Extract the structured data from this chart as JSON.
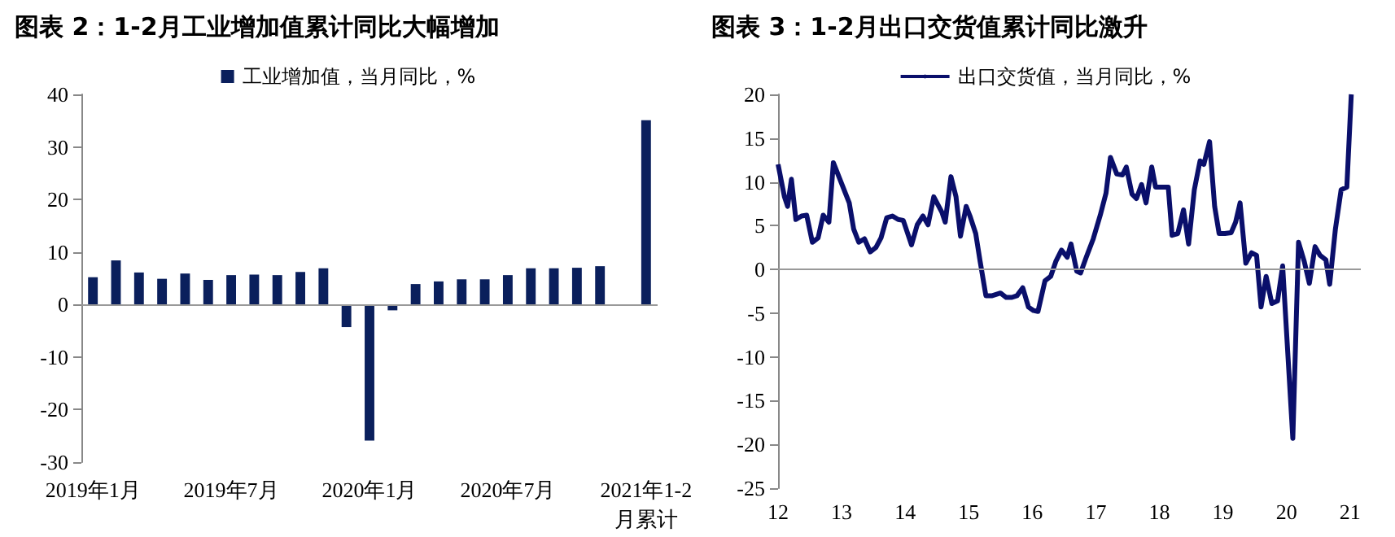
{
  "chart_data": [
    {
      "type": "bar",
      "title": "图表 2：1-2月工业增加值累计同比大幅增加",
      "categories": [
        "2019年1月",
        null,
        null,
        null,
        null,
        null,
        "2019年7月",
        null,
        null,
        null,
        null,
        null,
        "2020年1月",
        null,
        null,
        null,
        null,
        null,
        "2020年7月",
        null,
        null,
        null,
        null,
        null,
        "2021年1-2\n月累计"
      ],
      "series": [
        {
          "name": "工业增加值，当月同比，%",
          "color": "#0a1f5c",
          "values": [
            5.2,
            8.4,
            6.1,
            4.9,
            5.9,
            4.7,
            5.6,
            5.7,
            5.6,
            6.2,
            6.9,
            -4.3,
            -25.9,
            -1.1,
            3.9,
            4.4,
            4.8,
            4.8,
            5.6,
            6.9,
            6.9,
            7.0,
            7.3,
            null,
            35.1
          ]
        }
      ],
      "ylim": [
        -30,
        40
      ],
      "yticks": [
        -30,
        -20,
        -10,
        0,
        10,
        20,
        30,
        40
      ],
      "grid": false,
      "legend": "top",
      "ref_lines": [
        {
          "axis": "y",
          "value": 0,
          "color": "#999999"
        }
      ]
    },
    {
      "type": "line",
      "title": "图表 3：1-2月出口交货值累计同比激升",
      "x": [
        12.0,
        12.1,
        12.15,
        12.21,
        12.28,
        12.37,
        12.45,
        12.54,
        12.63,
        12.71,
        12.8,
        12.87,
        13.0,
        13.12,
        13.19,
        13.27,
        13.36,
        13.45,
        13.54,
        13.62,
        13.71,
        13.8,
        13.89,
        13.97,
        14.1,
        14.19,
        14.28,
        14.36,
        14.45,
        14.58,
        14.63,
        14.72,
        14.8,
        14.87,
        14.96,
        15.02,
        15.11,
        15.18,
        15.27,
        15.37,
        15.5,
        15.59,
        15.68,
        15.76,
        15.85,
        15.94,
        16.02,
        16.09,
        16.2,
        16.29,
        16.37,
        16.46,
        16.55,
        16.61,
        16.7,
        16.76,
        16.85,
        16.96,
        17.07,
        17.16,
        17.23,
        17.33,
        17.42,
        17.48,
        17.57,
        17.64,
        17.72,
        17.79,
        17.88,
        17.94,
        18.07,
        18.14,
        18.2,
        18.29,
        18.38,
        18.46,
        18.55,
        18.64,
        18.7,
        18.79,
        18.87,
        18.94,
        19.03,
        19.13,
        19.2,
        19.27,
        19.36,
        19.45,
        19.53,
        19.6,
        19.68,
        19.77,
        19.86,
        19.94,
        20.1,
        20.19,
        20.28,
        20.36,
        20.45,
        20.53,
        20.62,
        20.68,
        20.77,
        20.86,
        20.95,
        21.02
      ],
      "series": [
        {
          "name": "出口交货值，当月同比，%",
          "color": "#0a0f6b",
          "values": [
            12.0,
            8.3,
            7.2,
            10.3,
            5.7,
            6.1,
            6.2,
            3.1,
            3.6,
            6.2,
            5.4,
            12.2,
            9.8,
            7.6,
            4.6,
            3.1,
            3.5,
            2.0,
            2.5,
            3.6,
            5.9,
            6.1,
            5.7,
            5.6,
            2.8,
            5.1,
            6.1,
            5.1,
            8.3,
            6.5,
            5.4,
            10.6,
            8.3,
            3.8,
            7.2,
            6.1,
            4.1,
            0.9,
            -3.0,
            -3.0,
            -2.7,
            -3.2,
            -3.2,
            -3.0,
            -2.1,
            -4.3,
            -4.7,
            -4.8,
            -1.3,
            -0.8,
            0.9,
            2.2,
            1.4,
            2.9,
            -0.2,
            -0.4,
            1.4,
            3.5,
            6.2,
            8.7,
            12.8,
            10.9,
            10.8,
            11.7,
            8.6,
            8.1,
            9.7,
            7.6,
            11.7,
            9.4,
            9.4,
            9.4,
            3.9,
            4.1,
            6.8,
            2.9,
            9.1,
            12.4,
            12.0,
            14.6,
            7.2,
            4.1,
            4.1,
            4.2,
            5.4,
            7.6,
            0.7,
            1.9,
            1.6,
            -4.3,
            -0.8,
            -3.9,
            -3.6,
            0.4,
            -19.3,
            3.1,
            0.9,
            -1.6,
            2.6,
            1.6,
            1.1,
            -1.7,
            4.6,
            9.1,
            9.4,
            20.0
          ]
        }
      ],
      "xlim": [
        12,
        21.17
      ],
      "xticks": [
        12,
        13,
        14,
        15,
        16,
        17,
        18,
        19,
        20,
        21
      ],
      "ylim": [
        -25,
        20
      ],
      "yticks": [
        -25,
        -20,
        -15,
        -10,
        -5,
        0,
        5,
        10,
        15,
        20
      ],
      "grid": false,
      "legend": "top",
      "marker": "none",
      "line_style": "solid",
      "ref_lines": [
        {
          "axis": "y",
          "value": 0,
          "color": "#999999"
        }
      ]
    }
  ]
}
